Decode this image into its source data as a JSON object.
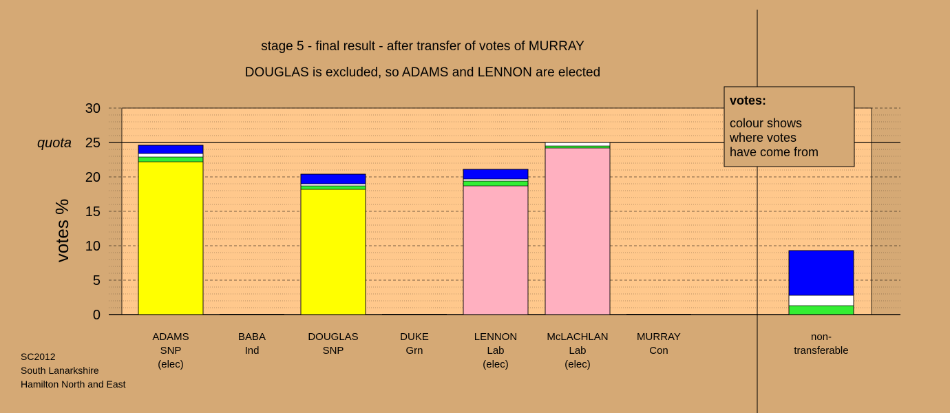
{
  "chart_data": {
    "type": "bar",
    "stacked": true,
    "title": "stage 5 - final result - after transfer of votes of MURRAY",
    "subtitle": "DOUGLAS is excluded, so ADAMS and LENNON are elected",
    "ylabel": "votes %",
    "ylim": [
      0,
      30
    ],
    "yticks": [
      0,
      5,
      10,
      15,
      20,
      25,
      30
    ],
    "quota": {
      "label": "quota",
      "value": 25
    },
    "grid": true,
    "categories": [
      {
        "lines": [
          "ADAMS",
          "SNP",
          "(elec)"
        ]
      },
      {
        "lines": [
          "BABA",
          "Ind"
        ]
      },
      {
        "lines": [
          "DOUGLAS",
          "SNP"
        ]
      },
      {
        "lines": [
          "DUKE",
          "Grn"
        ]
      },
      {
        "lines": [
          "LENNON",
          "Lab",
          "(elec)"
        ]
      },
      {
        "lines": [
          "McLACHLAN",
          "Lab",
          "(elec)"
        ]
      },
      {
        "lines": [
          "MURRAY",
          "Con"
        ]
      },
      {
        "lines": [
          "non-",
          "transferable"
        ]
      }
    ],
    "bars": [
      {
        "segments": [
          {
            "color": "#ffff00",
            "value": 22.2
          },
          {
            "color": "#33ee33",
            "value": 0.7
          },
          {
            "color": "#ffffff",
            "value": 0.5
          },
          {
            "color": "#0000ff",
            "value": 1.2
          }
        ]
      },
      {
        "segments": []
      },
      {
        "segments": [
          {
            "color": "#ffff00",
            "value": 18.2
          },
          {
            "color": "#33ee33",
            "value": 0.5
          },
          {
            "color": "#ffffff",
            "value": 0.3
          },
          {
            "color": "#0000ff",
            "value": 1.4
          }
        ]
      },
      {
        "segments": []
      },
      {
        "segments": [
          {
            "color": "#ffb0c0",
            "value": 18.7
          },
          {
            "color": "#33ee33",
            "value": 0.7
          },
          {
            "color": "#ffffff",
            "value": 0.3
          },
          {
            "color": "#0000ff",
            "value": 1.4
          }
        ]
      },
      {
        "segments": [
          {
            "color": "#ffb0c0",
            "value": 24.2
          },
          {
            "color": "#33ee33",
            "value": 0.3
          },
          {
            "color": "#ffffff",
            "value": 0.5
          }
        ]
      },
      {
        "segments": []
      },
      {
        "segments": [
          {
            "color": "#33ee33",
            "value": 1.3
          },
          {
            "color": "#ffffff",
            "value": 1.5
          },
          {
            "color": "#0000ff",
            "value": 6.5
          }
        ]
      }
    ],
    "legend": {
      "title": "votes:",
      "lines": [
        "colour shows",
        "where votes",
        "have come from"
      ],
      "placement": "top-right"
    },
    "footnote": [
      "SC2012",
      "South Lanarkshire",
      "Hamilton North and East"
    ]
  }
}
